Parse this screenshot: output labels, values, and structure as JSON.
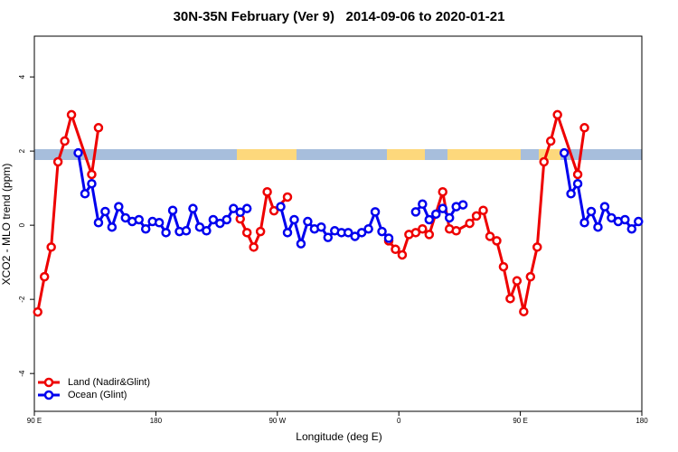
{
  "chart_data": {
    "type": "line",
    "title": "30N-35N February (Ver 9)   2014-09-06 to 2020-01-21",
    "x_label": "Longitude (deg E)",
    "y_label": "XCO2 - MLO trend (ppm)",
    "xlim": [
      90,
      540
    ],
    "xticks": [
      {
        "value": 90,
        "label": "90 E"
      },
      180,
      {
        "value": 270,
        "label": "90 W"
      },
      {
        "value": 360,
        "label": "0"
      },
      {
        "value": 450,
        "label": "90 E"
      },
      {
        "value": 540,
        "label": "180"
      }
    ],
    "ylim": [
      -5.02,
      5.1
    ],
    "yticks": [
      -4,
      -2,
      0,
      2,
      4
    ],
    "legend": "bottom-left",
    "series": [
      {
        "name": "Land (Nadir&Glint)",
        "color": "#ee0000",
        "x": [
          92.5,
          97.5,
          102.5,
          107.5,
          112.5,
          117.5,
          132.5,
          137.5,
          142.5,
          242.5,
          247.5,
          252.5,
          257.5,
          262.5,
          267.5,
          277.5,
          282.5,
          352.5,
          357.5,
          362.5,
          367.5,
          372.5,
          377.5,
          382.5,
          392.5,
          397.5,
          402.5,
          412.5,
          417.5,
          422.5,
          427.5,
          432.5,
          437.5,
          442.5,
          447.5,
          452.5,
          457.5,
          462.5,
          467.5,
          472.5,
          477.5,
          492.5,
          497.5
        ],
        "values": [
          -2.34,
          -1.39,
          -0.59,
          1.71,
          2.27,
          2.98,
          1.37,
          2.63,
          null,
          0.17,
          -0.2,
          -0.59,
          -0.17,
          0.9,
          0.39,
          0.76,
          null,
          -0.42,
          -0.65,
          -0.8,
          -0.25,
          -0.2,
          -0.1,
          -0.25,
          0.9,
          -0.1,
          -0.15,
          0.05,
          0.25,
          0.4,
          -0.3,
          -0.42,
          -1.12,
          -1.98,
          -1.5,
          -2.33,
          -1.39,
          -0.59,
          1.71,
          2.27,
          2.98,
          1.37,
          2.63
        ]
      },
      {
        "name": "Ocean (Glint)",
        "color": "#0000ee",
        "x": [
          122.5,
          127.5,
          132.5,
          137.5,
          142.5,
          147.5,
          152.5,
          157.5,
          162.5,
          167.5,
          172.5,
          177.5,
          182.5,
          187.5,
          192.5,
          197.5,
          202.5,
          207.5,
          212.5,
          217.5,
          222.5,
          227.5,
          232.5,
          237.5,
          242.5,
          247.5,
          252.5,
          272.5,
          277.5,
          282.5,
          287.5,
          292.5,
          297.5,
          302.5,
          307.5,
          312.5,
          317.5,
          322.5,
          327.5,
          332.5,
          337.5,
          342.5,
          347.5,
          352.5,
          357.5,
          372.5,
          377.5,
          382.5,
          387.5,
          392.5,
          397.5,
          402.5,
          407.5,
          412.5,
          482.5,
          487.5,
          492.5,
          497.5,
          502.5,
          507.5,
          512.5,
          517.5,
          522.5,
          527.5,
          532.5,
          537.5
        ],
        "values": [
          1.95,
          0.85,
          1.12,
          0.07,
          0.37,
          -0.05,
          0.5,
          0.2,
          0.1,
          0.15,
          -0.1,
          0.1,
          0.07,
          -0.2,
          0.4,
          -0.17,
          -0.15,
          0.45,
          -0.05,
          -0.15,
          0.15,
          0.05,
          0.15,
          0.45,
          0.35,
          0.45,
          null,
          0.5,
          -0.2,
          0.15,
          -0.5,
          0.1,
          -0.1,
          -0.05,
          -0.33,
          -0.15,
          -0.2,
          -0.2,
          -0.3,
          -0.2,
          -0.1,
          0.36,
          -0.17,
          -0.35,
          null,
          0.36,
          0.57,
          0.15,
          0.3,
          0.45,
          0.2,
          0.5,
          0.55,
          null,
          1.95,
          0.85,
          1.12,
          0.07,
          0.37,
          -0.05,
          0.5,
          0.2,
          0.1,
          0.15,
          -0.1,
          0.1
        ]
      }
    ]
  }
}
